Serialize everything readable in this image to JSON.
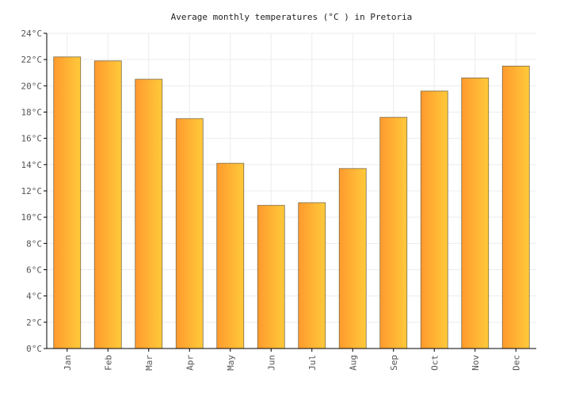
{
  "chart_data": {
    "type": "bar",
    "title": "Average monthly temperatures (°C ) in Pretoria",
    "categories": [
      "Jan",
      "Feb",
      "Mar",
      "Apr",
      "May",
      "Jun",
      "Jul",
      "Aug",
      "Sep",
      "Oct",
      "Nov",
      "Dec"
    ],
    "values": [
      22.2,
      21.9,
      20.5,
      17.5,
      14.1,
      10.9,
      11.1,
      13.7,
      17.6,
      19.6,
      20.6,
      21.5
    ],
    "ylim": [
      0,
      24
    ],
    "yticks": [
      0,
      2,
      4,
      6,
      8,
      10,
      12,
      14,
      16,
      18,
      20,
      22,
      24
    ],
    "ytick_suffix": "°C",
    "xlabel": "",
    "ylabel": "",
    "grid": true,
    "colors": {
      "bar_left": "#ff9a2e",
      "bar_right": "#ffca3a",
      "bar_edge": "#7a6a48"
    }
  }
}
